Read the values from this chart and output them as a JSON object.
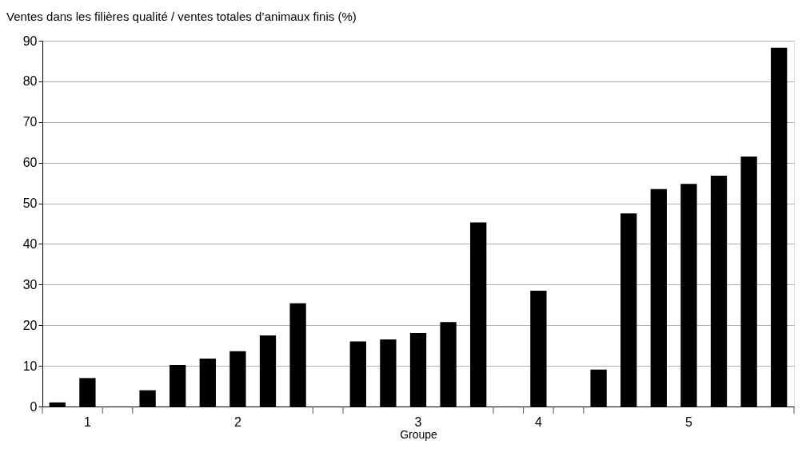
{
  "chart_data": {
    "type": "bar",
    "title": "Ventes dans les filières qualité / ventes totales d’animaux finis (%)",
    "xlabel": "Groupe",
    "categories": [
      null,
      "1",
      null,
      null,
      null,
      null,
      "2",
      null,
      null,
      null,
      null,
      null,
      "3",
      null,
      null,
      null,
      "4",
      null,
      null,
      null,
      null,
      "5",
      null,
      null,
      null
    ],
    "values": [
      1,
      7,
      null,
      4,
      10.2,
      11.8,
      13.6,
      17.5,
      25.4,
      null,
      16,
      16.5,
      18.1,
      20.8,
      45.3,
      null,
      28.5,
      null,
      9.1,
      47.5,
      53.5,
      54.8,
      56.8,
      61.5,
      88.3
    ],
    "color": "#000000",
    "ylim": [
      0,
      90
    ],
    "yticks": [
      0,
      10,
      20,
      30,
      40,
      50,
      60,
      70,
      80,
      90
    ],
    "grid": "y"
  }
}
